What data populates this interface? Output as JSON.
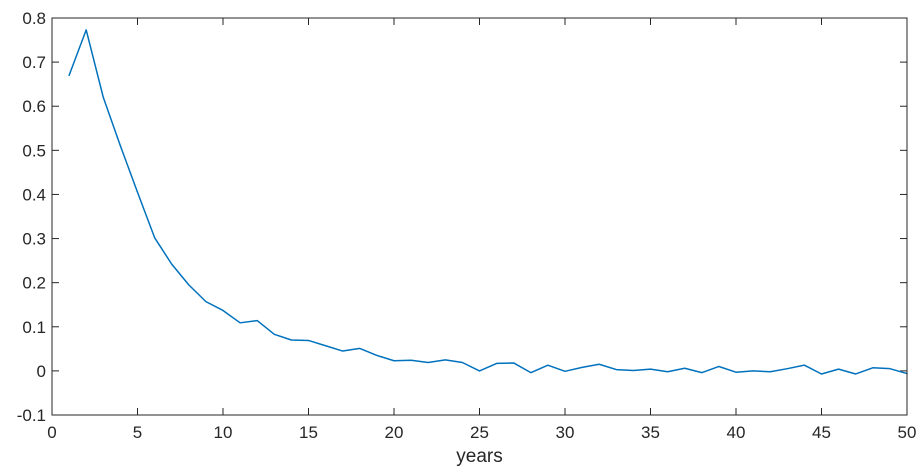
{
  "chart_data": {
    "type": "line",
    "title": "",
    "xlabel": "years",
    "ylabel": "",
    "xlim": [
      0,
      50
    ],
    "ylim": [
      -0.1,
      0.8
    ],
    "xticks": [
      0,
      5,
      10,
      15,
      20,
      25,
      30,
      35,
      40,
      45,
      50
    ],
    "xtick_labels": [
      "0",
      "5",
      "10",
      "15",
      "20",
      "25",
      "30",
      "35",
      "40",
      "45",
      "50"
    ],
    "yticks": [
      -0.1,
      0,
      0.1,
      0.2,
      0.3,
      0.4,
      0.5,
      0.6,
      0.7,
      0.8
    ],
    "ytick_labels": [
      "-0.1",
      "0",
      "0.1",
      "0.2",
      "0.3",
      "0.4",
      "0.5",
      "0.6",
      "0.7",
      "0.8"
    ],
    "grid": false,
    "legend": "none",
    "series": [
      {
        "color": "#0072BD",
        "x": [
          1,
          2,
          3,
          4,
          5,
          6,
          7,
          8,
          9,
          10,
          11,
          12,
          13,
          14,
          15,
          16,
          17,
          18,
          19,
          20,
          21,
          22,
          23,
          24,
          25,
          26,
          27,
          28,
          29,
          30,
          31,
          32,
          33,
          34,
          35,
          36,
          37,
          38,
          39,
          40,
          41,
          42,
          43,
          44,
          45,
          46,
          47,
          48,
          49,
          50
        ],
        "values": [
          0.67,
          0.773,
          0.62,
          0.51,
          0.405,
          0.302,
          0.242,
          0.195,
          0.157,
          0.137,
          0.109,
          0.114,
          0.083,
          0.07,
          0.069,
          0.057,
          0.045,
          0.051,
          0.035,
          0.023,
          0.024,
          0.019,
          0.025,
          0.019,
          0.0,
          0.017,
          0.018,
          -0.004,
          0.013,
          -0.001,
          0.008,
          0.015,
          0.003,
          0.001,
          0.004,
          -0.002,
          0.006,
          -0.004,
          0.01,
          -0.003,
          0.0,
          -0.002,
          0.005,
          0.013,
          -0.007,
          0.004,
          -0.007,
          0.007,
          0.005,
          -0.006
        ]
      }
    ]
  }
}
